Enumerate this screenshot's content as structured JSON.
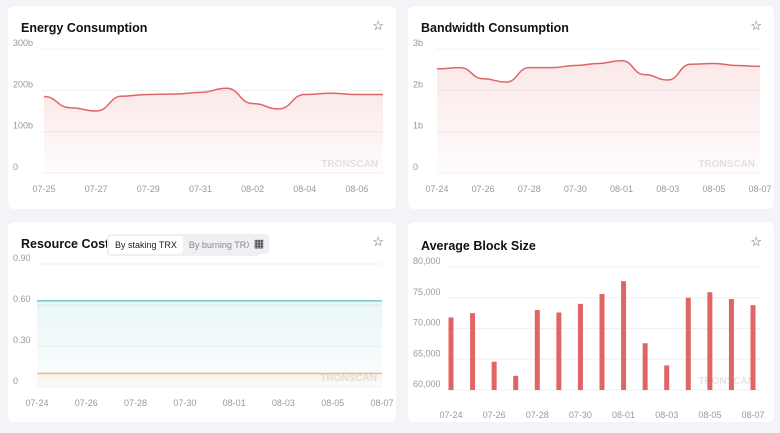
{
  "cards": {
    "energy": {
      "title": "Energy Consumption"
    },
    "bandwidth": {
      "title": "Bandwidth Consumption"
    },
    "resource": {
      "title": "Resource Costs",
      "tabs": [
        "By staking TRX",
        "By burning TRX"
      ],
      "active_tab": "By staking TRX"
    },
    "block": {
      "title": "Average Block Size"
    }
  },
  "watermark": "TRONSCAN",
  "icons": {
    "favorite": "star-icon",
    "calculator": "calculator-icon"
  },
  "colors": {
    "red": "#e06666",
    "teal": "#6cc7cc",
    "orange": "#f2b98a"
  },
  "chart_data": [
    {
      "type": "area",
      "title": "Energy Consumption",
      "ylim": [
        0,
        300
      ],
      "yticks": [
        "0",
        "100b",
        "200b",
        "300b"
      ],
      "ytick_values": [
        0,
        100,
        200,
        300
      ],
      "x": [
        "07-25",
        "07-26",
        "07-27",
        "07-28",
        "07-29",
        "07-30",
        "07-31",
        "08-01",
        "08-02",
        "08-03",
        "08-04",
        "08-05",
        "08-06",
        "08-07"
      ],
      "xticks": [
        "07-25",
        "07-27",
        "07-29",
        "07-31",
        "08-02",
        "08-04",
        "08-06"
      ],
      "values": [
        185,
        158,
        150,
        186,
        190,
        191,
        195,
        205,
        168,
        155,
        190,
        193,
        190,
        190
      ],
      "unit": "b"
    },
    {
      "type": "area",
      "title": "Bandwidth Consumption",
      "ylim": [
        0,
        3
      ],
      "yticks": [
        "0",
        "1b",
        "2b",
        "3b"
      ],
      "ytick_values": [
        0,
        1,
        2,
        3
      ],
      "x": [
        "07-24",
        "07-25",
        "07-26",
        "07-27",
        "07-28",
        "07-29",
        "07-30",
        "07-31",
        "08-01",
        "08-02",
        "08-03",
        "08-04",
        "08-05",
        "08-06",
        "08-07"
      ],
      "xticks": [
        "07-24",
        "07-26",
        "07-28",
        "07-30",
        "08-01",
        "08-03",
        "08-05",
        "08-07"
      ],
      "values": [
        2.52,
        2.55,
        2.28,
        2.2,
        2.55,
        2.55,
        2.6,
        2.65,
        2.72,
        2.38,
        2.25,
        2.63,
        2.65,
        2.6,
        2.58
      ],
      "unit": "b"
    },
    {
      "type": "area",
      "title": "Resource Costs",
      "ylim": [
        0,
        0.9
      ],
      "yticks": [
        "0",
        "0.30",
        "0.60",
        "0.90"
      ],
      "ytick_values": [
        0,
        0.3,
        0.6,
        0.9
      ],
      "x": [
        "07-24",
        "07-25",
        "07-26",
        "07-27",
        "07-28",
        "07-29",
        "07-30",
        "07-31",
        "08-01",
        "08-02",
        "08-03",
        "08-04",
        "08-05",
        "08-06",
        "08-07"
      ],
      "xticks": [
        "07-24",
        "07-26",
        "07-28",
        "07-30",
        "08-01",
        "08-03",
        "08-05",
        "08-07"
      ],
      "series": [
        {
          "values": [
            0.63,
            0.63,
            0.63,
            0.63,
            0.63,
            0.63,
            0.63,
            0.63,
            0.63,
            0.63,
            0.63,
            0.63,
            0.63,
            0.63,
            0.63
          ],
          "color": "#6cc7cc"
        },
        {
          "values": [
            0.1,
            0.1,
            0.1,
            0.1,
            0.1,
            0.1,
            0.1,
            0.1,
            0.1,
            0.1,
            0.1,
            0.1,
            0.1,
            0.1,
            0.1
          ],
          "color": "#f2b98a"
        }
      ]
    },
    {
      "type": "bar",
      "title": "Average Block Size",
      "ylim": [
        60000,
        80000
      ],
      "yticks": [
        "60,000",
        "65,000",
        "70,000",
        "75,000",
        "80,000"
      ],
      "ytick_values": [
        60000,
        65000,
        70000,
        75000,
        80000
      ],
      "x": [
        "07-24",
        "07-25",
        "07-26",
        "07-27",
        "07-28",
        "07-29",
        "07-30",
        "07-31",
        "08-01",
        "08-02",
        "08-03",
        "08-04",
        "08-05",
        "08-06",
        "08-07"
      ],
      "xticks": [
        "07-24",
        "07-26",
        "07-28",
        "07-30",
        "08-01",
        "08-03",
        "08-05",
        "08-07"
      ],
      "values": [
        71800,
        72500,
        64600,
        62300,
        73000,
        72600,
        74000,
        75600,
        77700,
        67600,
        64000,
        75000,
        75900,
        74800,
        73800
      ]
    }
  ]
}
